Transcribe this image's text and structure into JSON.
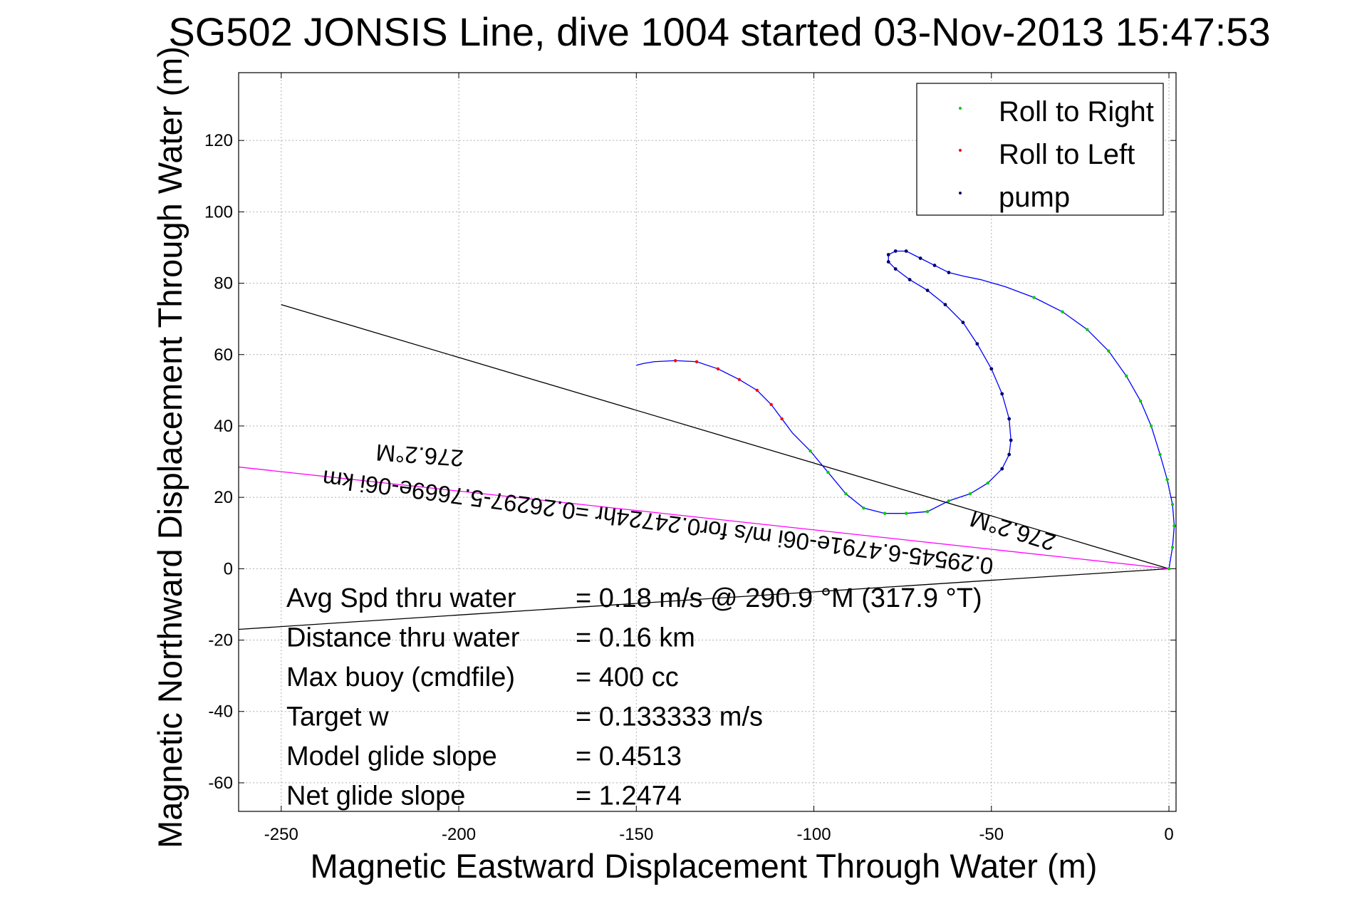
{
  "chart_data": {
    "type": "line",
    "title": "SG502 JONSIS Line, dive 1004 started 03-Nov-2013 15:47:53",
    "xlabel": "Magnetic Eastward Displacement Through Water (m)",
    "ylabel": "Magnetic Northward Displacement Through Water (m)",
    "xlim": [
      -262,
      2
    ],
    "ylim": [
      -68,
      139
    ],
    "xticks": [
      -250,
      -200,
      -150,
      -100,
      -50,
      0
    ],
    "yticks": [
      -60,
      -40,
      -20,
      0,
      20,
      40,
      60,
      80,
      100,
      120
    ],
    "grid": true,
    "legend_position": "top-right",
    "legend": [
      {
        "label": "Roll to Right",
        "color": "#00cc00"
      },
      {
        "label": "Roll to Left",
        "color": "#ff0000"
      },
      {
        "label": "pump",
        "color": "#000066"
      }
    ],
    "track": {
      "name": "",
      "color": "#0000ff",
      "points": [
        [
          0,
          0
        ],
        [
          1,
          6
        ],
        [
          1.5,
          12
        ],
        [
          1,
          18
        ],
        [
          -0.5,
          25
        ],
        [
          -2.5,
          32
        ],
        [
          -5,
          40
        ],
        [
          -8,
          47
        ],
        [
          -12,
          54
        ],
        [
          -17,
          61
        ],
        [
          -23,
          67
        ],
        [
          -30,
          72
        ],
        [
          -38,
          76
        ],
        [
          -46,
          79
        ],
        [
          -53,
          81
        ],
        [
          -58,
          82
        ],
        [
          -62,
          83
        ],
        [
          -66,
          85
        ],
        [
          -70,
          87
        ],
        [
          -74,
          89
        ],
        [
          -77,
          89
        ],
        [
          -79,
          88
        ],
        [
          -79,
          86
        ],
        [
          -77,
          84
        ],
        [
          -73,
          81
        ],
        [
          -68,
          78
        ],
        [
          -63,
          74
        ],
        [
          -58,
          69
        ],
        [
          -54,
          63
        ],
        [
          -50,
          56
        ],
        [
          -47,
          49
        ],
        [
          -45,
          42
        ],
        [
          -44.5,
          36
        ],
        [
          -45,
          32
        ],
        [
          -47,
          28
        ],
        [
          -51,
          24
        ],
        [
          -56,
          21
        ],
        [
          -62,
          19
        ],
        [
          -68,
          16
        ],
        [
          -74,
          15.5
        ],
        [
          -80,
          15.5
        ],
        [
          -86,
          17
        ],
        [
          -91,
          21
        ],
        [
          -96,
          27
        ],
        [
          -101,
          33
        ],
        [
          -106,
          38
        ],
        [
          -109,
          42
        ],
        [
          -112,
          46
        ],
        [
          -116,
          50
        ],
        [
          -121,
          53
        ],
        [
          -127,
          56
        ],
        [
          -133,
          58
        ],
        [
          -139,
          58.3
        ],
        [
          -145,
          58
        ],
        [
          -148,
          57.5
        ],
        [
          -150,
          57
        ]
      ],
      "roll_right_segments": [
        [
          0,
          12
        ],
        [
          28,
          44
        ]
      ],
      "roll_left_segments": [
        [
          46,
          52
        ]
      ],
      "pump_segments": [
        [
          16,
          34
        ]
      ]
    },
    "reference_lines": [
      {
        "color": "#000000",
        "points": [
          [
            -250,
            74
          ],
          [
            0,
            0
          ]
        ]
      },
      {
        "color": "#000000",
        "points": [
          [
            -262,
            -17
          ],
          [
            0,
            0
          ]
        ]
      },
      {
        "color": "#ff00ff",
        "points": [
          [
            -262,
            28.5
          ],
          [
            0,
            0
          ]
        ]
      }
    ],
    "annotations": {
      "current_text_1": "0.29545-6.4791e-06i m/s for0.24724hr =0.26297-5.7669e-06i km",
      "current_heading_1": "276.2°M",
      "current_heading_2": "276.2°M",
      "stats": [
        {
          "label": "Avg Spd thru water",
          "value": "=  0.18 m/s @ 290.9 °M (317.9 °T)"
        },
        {
          "label": "Distance thru water",
          "value": "=  0.16 km"
        },
        {
          "label": "Max buoy (cmdfile)",
          "value": "= 400 cc"
        },
        {
          "label": "Target w",
          "value": "= 0.133333 m/s"
        },
        {
          "label": "Model glide slope",
          "value": "= 0.4513"
        },
        {
          "label": "Net glide slope",
          "value": "= 1.2474"
        }
      ]
    }
  }
}
